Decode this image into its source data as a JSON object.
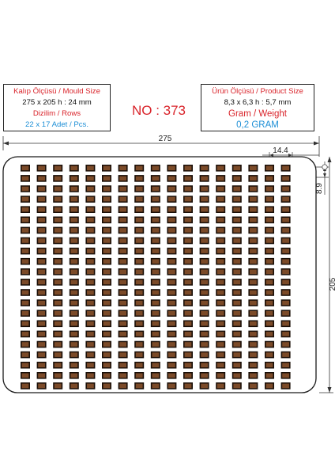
{
  "mould_info": {
    "title": "Kalıp Ölçüsü / Mould Size",
    "size": "275 x 205 h : 24 mm",
    "rows_label": "Dizilim / Rows",
    "count": "22 x 17 Adet / Pcs."
  },
  "model_number": "NO : 373",
  "product_info": {
    "title": "Ürün Ölçüsü / Product Size",
    "size": "8,3 x 6,3 h : 5,7 mm",
    "weight_label": "Gram / Weight",
    "weight": "0,2 GRAM"
  },
  "dimensions": {
    "overall_width": "275",
    "overall_height": "205",
    "pitch_x": "14.4",
    "pitch_y": "8.9"
  },
  "grid": {
    "columns": 17,
    "rows": 22
  },
  "colors": {
    "cavity_fill": "#7b4a28",
    "cavity_outline": "#1a0f08",
    "title_red": "#d9232a",
    "accent_blue": "#1e8fd6"
  }
}
